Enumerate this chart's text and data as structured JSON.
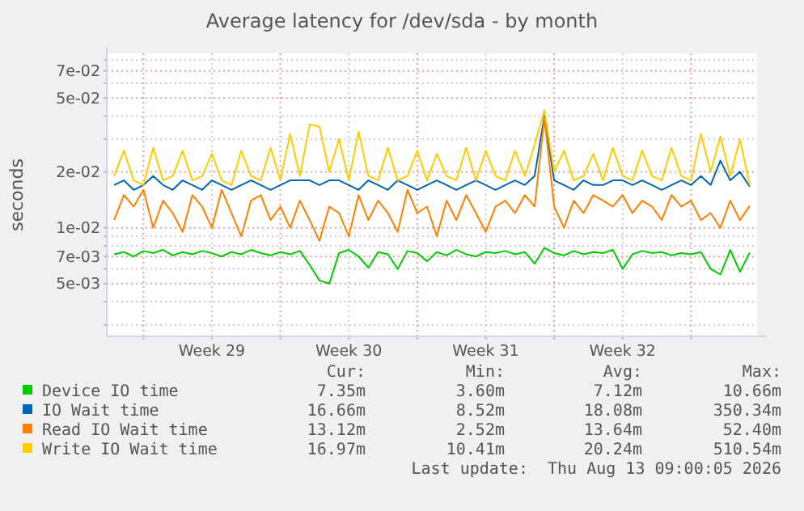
{
  "chart_data": {
    "type": "line",
    "title": "Average latency for /dev/sda - by month",
    "ylabel": "seconds",
    "log": "y",
    "grid": true,
    "legend": "bottom",
    "line_style": "solid",
    "ylim": [
      0.0026,
      0.087
    ],
    "yticks": [
      {
        "value": 0.003,
        "label": null
      },
      {
        "value": 0.004,
        "label": null
      },
      {
        "value": 0.005,
        "label": "5e-03"
      },
      {
        "value": 0.006,
        "label": null
      },
      {
        "value": 0.007,
        "label": "7e-03"
      },
      {
        "value": 0.008,
        "label": null
      },
      {
        "value": 0.009,
        "label": null
      },
      {
        "value": 0.01,
        "label": "1e-02"
      },
      {
        "value": 0.02,
        "label": "2e-02"
      },
      {
        "value": 0.03,
        "label": null
      },
      {
        "value": 0.04,
        "label": null
      },
      {
        "value": 0.05,
        "label": "5e-02"
      },
      {
        "value": 0.06,
        "label": null
      },
      {
        "value": 0.07,
        "label": "7e-02"
      },
      {
        "value": 0.08,
        "label": null
      }
    ],
    "xlim": [
      "2026-07-11T03:00",
      "2026-08-13T09:00"
    ],
    "xticks": [
      {
        "value": "2026-07-13T00:00",
        "label": null
      },
      {
        "value": "2026-07-16T12:00",
        "label": "Week 29"
      },
      {
        "value": "2026-07-20T00:00",
        "label": null
      },
      {
        "value": "2026-07-23T12:00",
        "label": "Week 30"
      },
      {
        "value": "2026-07-27T00:00",
        "label": null
      },
      {
        "value": "2026-07-30T12:00",
        "label": "Week 31"
      },
      {
        "value": "2026-08-03T00:00",
        "label": null
      },
      {
        "value": "2026-08-06T12:00",
        "label": "Week 32"
      },
      {
        "value": "2026-08-10T00:00",
        "label": null
      }
    ],
    "x": [
      "2026-07-11T12:00",
      "2026-07-12T00:00",
      "2026-07-12T12:00",
      "2026-07-13T00:00",
      "2026-07-13T12:00",
      "2026-07-14T00:00",
      "2026-07-14T12:00",
      "2026-07-15T00:00",
      "2026-07-15T12:00",
      "2026-07-16T00:00",
      "2026-07-16T12:00",
      "2026-07-17T00:00",
      "2026-07-17T12:00",
      "2026-07-18T00:00",
      "2026-07-18T12:00",
      "2026-07-19T00:00",
      "2026-07-19T12:00",
      "2026-07-20T00:00",
      "2026-07-20T12:00",
      "2026-07-21T00:00",
      "2026-07-21T12:00",
      "2026-07-22T00:00",
      "2026-07-22T12:00",
      "2026-07-23T00:00",
      "2026-07-23T12:00",
      "2026-07-24T00:00",
      "2026-07-24T12:00",
      "2026-07-25T00:00",
      "2026-07-25T12:00",
      "2026-07-26T00:00",
      "2026-07-26T12:00",
      "2026-07-27T00:00",
      "2026-07-27T12:00",
      "2026-07-28T00:00",
      "2026-07-28T12:00",
      "2026-07-29T00:00",
      "2026-07-29T12:00",
      "2026-07-30T00:00",
      "2026-07-30T12:00",
      "2026-07-31T00:00",
      "2026-07-31T12:00",
      "2026-08-01T00:00",
      "2026-08-01T12:00",
      "2026-08-02T00:00",
      "2026-08-02T12:00",
      "2026-08-03T00:00",
      "2026-08-03T12:00",
      "2026-08-04T00:00",
      "2026-08-04T12:00",
      "2026-08-05T00:00",
      "2026-08-05T12:00",
      "2026-08-06T00:00",
      "2026-08-06T12:00",
      "2026-08-07T00:00",
      "2026-08-07T12:00",
      "2026-08-08T00:00",
      "2026-08-08T12:00",
      "2026-08-09T00:00",
      "2026-08-09T12:00",
      "2026-08-10T00:00",
      "2026-08-10T12:00",
      "2026-08-11T00:00",
      "2026-08-11T12:00",
      "2026-08-12T00:00",
      "2026-08-12T12:00",
      "2026-08-13T00:00"
    ],
    "series": [
      {
        "name": "Device IO time",
        "color": "#00cc00",
        "values": [
          0.0072,
          0.0074,
          0.007,
          0.0075,
          0.0073,
          0.0076,
          0.0071,
          0.0074,
          0.0072,
          0.0075,
          0.0073,
          0.007,
          0.0074,
          0.0072,
          0.0076,
          0.0073,
          0.0071,
          0.0074,
          0.0072,
          0.0075,
          0.0063,
          0.0052,
          0.005,
          0.0073,
          0.0076,
          0.007,
          0.0061,
          0.0074,
          0.0072,
          0.006,
          0.0075,
          0.0073,
          0.0066,
          0.0074,
          0.0071,
          0.0076,
          0.0072,
          0.007,
          0.0074,
          0.0073,
          0.0075,
          0.0072,
          0.0074,
          0.0064,
          0.0078,
          0.0073,
          0.0071,
          0.0075,
          0.0072,
          0.0074,
          0.0073,
          0.0076,
          0.006,
          0.0072,
          0.0075,
          0.0073,
          0.0074,
          0.0071,
          0.0073,
          0.0072,
          0.0074,
          0.006,
          0.0056,
          0.0076,
          0.0058,
          0.00735
        ]
      },
      {
        "name": "IO Wait time",
        "color": "#0066b3",
        "values": [
          0.017,
          0.018,
          0.016,
          0.017,
          0.019,
          0.017,
          0.016,
          0.018,
          0.017,
          0.016,
          0.018,
          0.017,
          0.016,
          0.017,
          0.018,
          0.017,
          0.016,
          0.017,
          0.018,
          0.018,
          0.018,
          0.017,
          0.018,
          0.018,
          0.017,
          0.016,
          0.018,
          0.017,
          0.016,
          0.018,
          0.017,
          0.016,
          0.017,
          0.018,
          0.017,
          0.016,
          0.017,
          0.018,
          0.017,
          0.016,
          0.017,
          0.018,
          0.017,
          0.019,
          0.04,
          0.018,
          0.017,
          0.016,
          0.018,
          0.017,
          0.017,
          0.018,
          0.018,
          0.017,
          0.018,
          0.017,
          0.016,
          0.017,
          0.018,
          0.017,
          0.019,
          0.017,
          0.023,
          0.018,
          0.02,
          0.01666
        ]
      },
      {
        "name": "Read IO Wait time",
        "color": "#ff8000",
        "values": [
          0.011,
          0.015,
          0.013,
          0.016,
          0.01,
          0.014,
          0.012,
          0.0095,
          0.015,
          0.013,
          0.01,
          0.016,
          0.012,
          0.009,
          0.014,
          0.015,
          0.011,
          0.013,
          0.01,
          0.014,
          0.011,
          0.0085,
          0.013,
          0.012,
          0.009,
          0.015,
          0.011,
          0.014,
          0.012,
          0.0095,
          0.016,
          0.012,
          0.013,
          0.009,
          0.014,
          0.011,
          0.015,
          0.012,
          0.0095,
          0.013,
          0.014,
          0.012,
          0.015,
          0.013,
          0.039,
          0.013,
          0.01,
          0.014,
          0.012,
          0.015,
          0.014,
          0.013,
          0.015,
          0.012,
          0.014,
          0.013,
          0.011,
          0.015,
          0.013,
          0.014,
          0.011,
          0.012,
          0.01,
          0.014,
          0.011,
          0.01312
        ]
      },
      {
        "name": "Write IO Wait time",
        "color": "#ffcc00",
        "values": [
          0.019,
          0.026,
          0.018,
          0.017,
          0.027,
          0.018,
          0.019,
          0.026,
          0.018,
          0.019,
          0.025,
          0.018,
          0.017,
          0.026,
          0.019,
          0.018,
          0.027,
          0.018,
          0.032,
          0.019,
          0.036,
          0.035,
          0.02,
          0.03,
          0.018,
          0.033,
          0.019,
          0.018,
          0.027,
          0.018,
          0.019,
          0.026,
          0.018,
          0.025,
          0.019,
          0.018,
          0.027,
          0.018,
          0.026,
          0.019,
          0.018,
          0.026,
          0.019,
          0.028,
          0.043,
          0.02,
          0.026,
          0.018,
          0.019,
          0.025,
          0.018,
          0.027,
          0.019,
          0.018,
          0.026,
          0.019,
          0.018,
          0.027,
          0.019,
          0.018,
          0.032,
          0.02,
          0.031,
          0.019,
          0.03,
          0.01697
        ]
      }
    ],
    "annotations": [
      "Cur:",
      "Min:",
      "Avg:",
      "Max:",
      "7.35m",
      "3.60m",
      "7.12m",
      "10.66m",
      "16.66m",
      "8.52m",
      "18.08m",
      "350.34m",
      "13.12m",
      "2.52m",
      "13.64m",
      "52.40m",
      "16.97m",
      "10.41m",
      "20.24m",
      "510.54m",
      "Last update:  Thu Aug 13 09:00:05 2026"
    ]
  }
}
